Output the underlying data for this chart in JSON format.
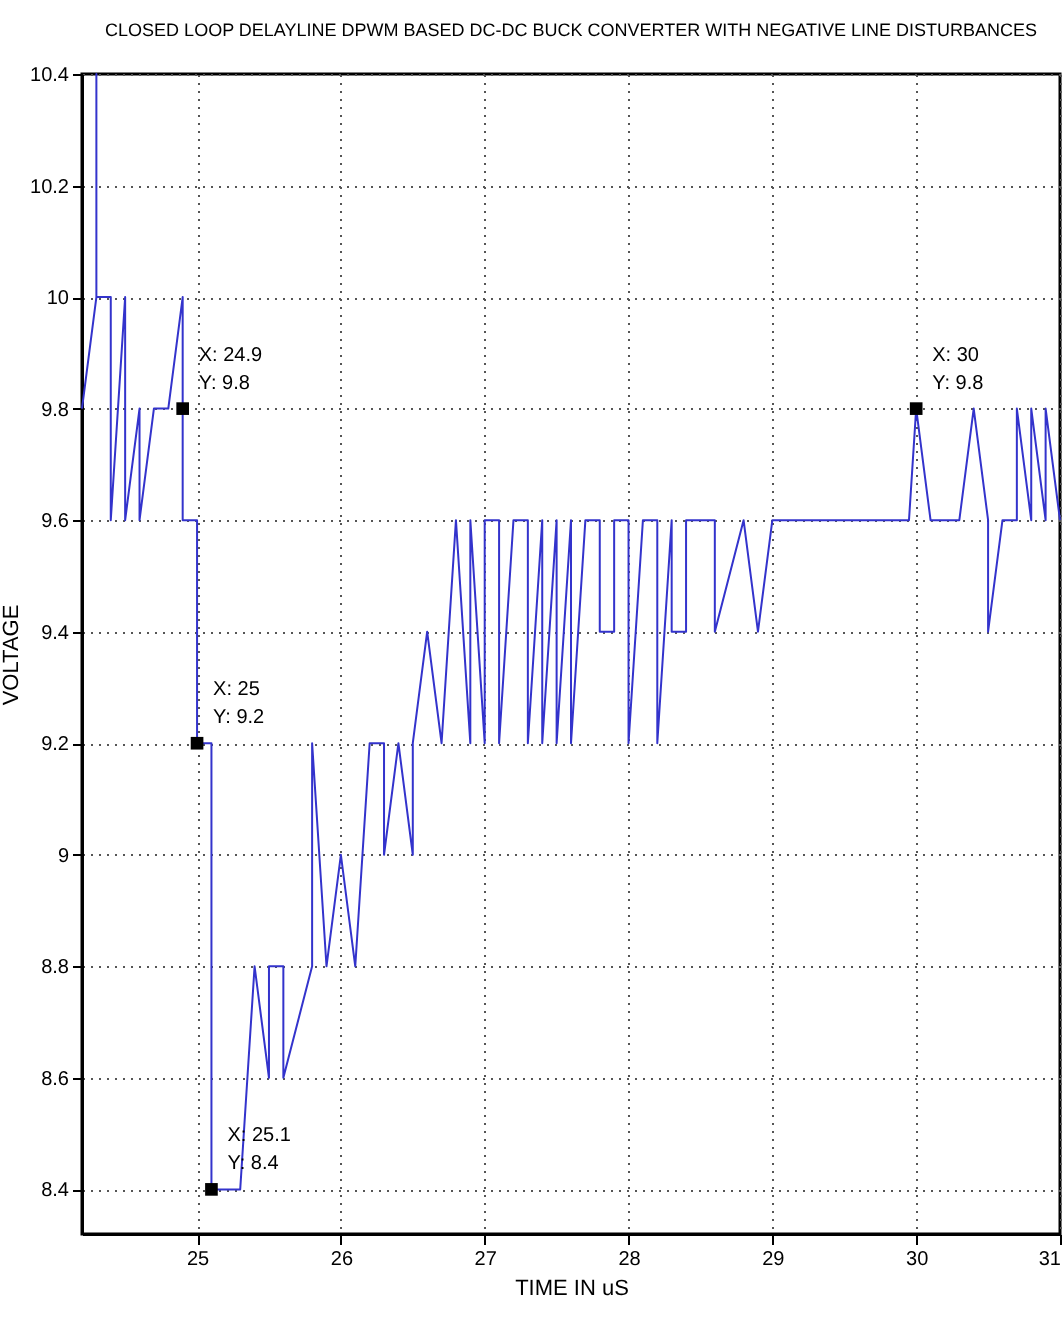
{
  "chart_data": {
    "type": "line",
    "title": "CLOSED LOOP DELAYLINE DPWM BASED DC-DC BUCK CONVERTER WITH NEGATIVE LINE DISTURBANCES",
    "xlabel": "TIME IN uS",
    "ylabel": "VOLTAGE",
    "series": [
      {
        "color": "#3333cc",
        "x": [
          24.2,
          24.3,
          24.3,
          24.3,
          24.4,
          24.4,
          24.5,
          24.5,
          24.6,
          24.6,
          24.7,
          24.8,
          24.9,
          24.9,
          25.0,
          25.0,
          25.1,
          25.1,
          25.3,
          25.4,
          25.5,
          25.5,
          25.6,
          25.6,
          25.8,
          25.8,
          25.9,
          26.0,
          26.1,
          26.2,
          26.3,
          26.3,
          26.4,
          26.5,
          26.5,
          26.6,
          26.7,
          26.8,
          26.9,
          26.9,
          27.0,
          27.0,
          27.1,
          27.1,
          27.2,
          27.3,
          27.3,
          27.4,
          27.4,
          27.5,
          27.5,
          27.6,
          27.6,
          27.7,
          27.8,
          27.8,
          27.9,
          27.9,
          28.0,
          28.0,
          28.1,
          28.2,
          28.2,
          28.3,
          28.3,
          28.4,
          28.4,
          28.6,
          28.6,
          28.8,
          28.9,
          29.0,
          29.95,
          30.0,
          30.1,
          30.3,
          30.4,
          30.5,
          30.5,
          30.6,
          30.7,
          30.7,
          30.8,
          30.8,
          30.9,
          30.9,
          31.0
        ],
        "values": [
          9.8,
          10.0,
          10.4,
          10.0,
          10.0,
          9.6,
          10.0,
          9.6,
          9.8,
          9.6,
          9.8,
          9.8,
          10.0,
          9.6,
          9.6,
          9.2,
          9.2,
          8.4,
          8.4,
          8.8,
          8.6,
          8.8,
          8.8,
          8.6,
          8.8,
          9.2,
          8.8,
          9.0,
          8.8,
          9.2,
          9.2,
          9.0,
          9.2,
          9.0,
          9.2,
          9.4,
          9.2,
          9.6,
          9.2,
          9.6,
          9.2,
          9.6,
          9.6,
          9.2,
          9.6,
          9.6,
          9.2,
          9.6,
          9.2,
          9.6,
          9.2,
          9.6,
          9.2,
          9.6,
          9.6,
          9.4,
          9.4,
          9.6,
          9.6,
          9.2,
          9.6,
          9.6,
          9.2,
          9.6,
          9.4,
          9.4,
          9.6,
          9.6,
          9.4,
          9.6,
          9.4,
          9.6,
          9.6,
          9.8,
          9.6,
          9.6,
          9.8,
          9.6,
          9.4,
          9.6,
          9.6,
          9.8,
          9.6,
          9.8,
          9.6,
          9.8,
          9.6
        ]
      }
    ],
    "xlim": [
      24.2,
      31
    ],
    "ylim": [
      8.32,
      10.4
    ],
    "xticks": [
      25,
      26,
      27,
      28,
      29,
      30,
      31
    ],
    "yticks": [
      8.4,
      8.6,
      8.8,
      9,
      9.2,
      9.4,
      9.6,
      9.8,
      10,
      10.2,
      10.4
    ],
    "grid": true,
    "marker": "none",
    "line_style": "solid",
    "annotations": [
      {
        "text": "X: 24.9\nY: 9.8",
        "x": 24.9,
        "y": 9.8
      },
      {
        "text": "X: 25\nY: 9.2",
        "x": 25,
        "y": 9.2
      },
      {
        "text": "X: 25.1\nY: 8.4",
        "x": 25.1,
        "y": 8.4
      },
      {
        "text": "X: 30\nY: 9.8",
        "x": 30,
        "y": 9.8
      }
    ]
  }
}
